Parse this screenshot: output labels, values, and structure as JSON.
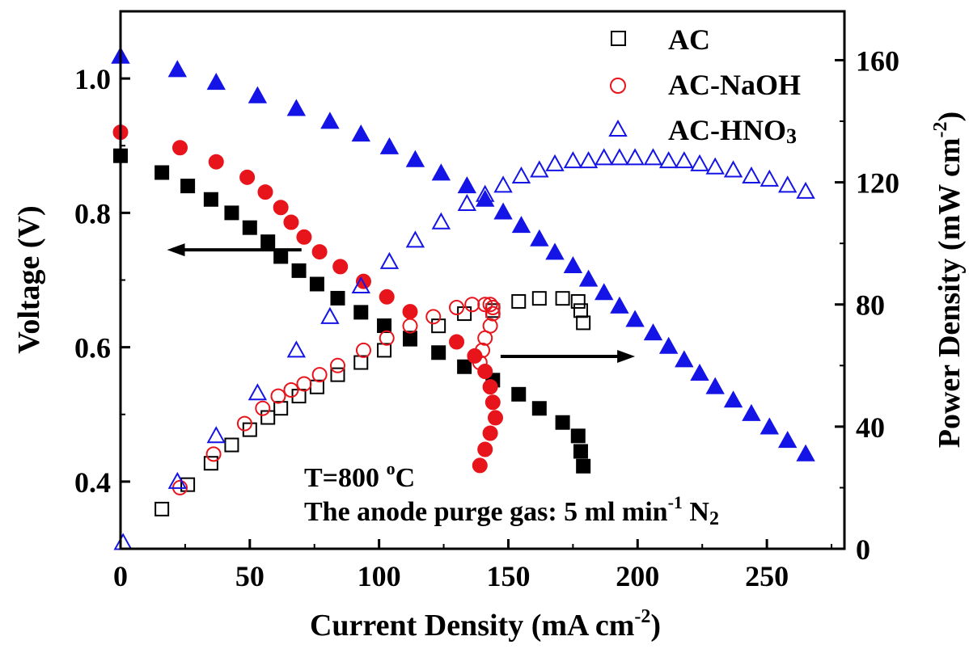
{
  "chart_data": {
    "type": "scatter",
    "xlabel": "Current Density (mA cm",
    "xlabel_sup": "-2",
    "xlabel_end": ")",
    "ylabel_left": "Voltage (V)",
    "ylabel_right": "Power Density (mW cm",
    "ylabel_right_sup": "-2",
    "ylabel_right_end": ")",
    "xlim": [
      0,
      280
    ],
    "ylim_left": [
      0.3,
      1.1
    ],
    "ylim_right": [
      0,
      176
    ],
    "x_ticks": [
      "0",
      "50",
      "100",
      "150",
      "200",
      "250"
    ],
    "x_tick_values": [
      0,
      50,
      100,
      150,
      200,
      250
    ],
    "y_left_ticks": [
      "0.4",
      "0.6",
      "0.8",
      "1.0"
    ],
    "y_left_tick_values": [
      0.4,
      0.6,
      0.8,
      1.0
    ],
    "y_right_ticks": [
      "0",
      "40",
      "80",
      "120",
      "160"
    ],
    "y_right_tick_values": [
      0,
      40,
      80,
      120,
      160
    ],
    "grid": false,
    "legend_position": "top-right",
    "legend": [
      {
        "label": "AC",
        "marker": "square-open",
        "color": "#000000"
      },
      {
        "label": "AC-NaOH",
        "marker": "circle-open",
        "color": "#e8141b"
      },
      {
        "label": "AC-HNO",
        "sub": "3",
        "marker": "triangle-open",
        "color": "#1414e6"
      }
    ],
    "annotations": {
      "temp_main": "T=800 ",
      "temp_sup": "o",
      "temp_end": "C",
      "gas_main": "The anode purge gas: 5 ml min",
      "gas_sup": "-1",
      "gas_mid": " N",
      "gas_sub": "2"
    },
    "series": [
      {
        "name": "AC",
        "kind": "voltage",
        "axis": "left",
        "marker": "square",
        "filled": true,
        "color": "#000000",
        "x": [
          0,
          16,
          26,
          35,
          43,
          50,
          57,
          62,
          69,
          76,
          84,
          93,
          102,
          112,
          123,
          133,
          144,
          154,
          162,
          171,
          177,
          178,
          179
        ],
        "y": [
          0.885,
          0.86,
          0.84,
          0.82,
          0.8,
          0.778,
          0.757,
          0.735,
          0.714,
          0.694,
          0.673,
          0.652,
          0.632,
          0.612,
          0.592,
          0.571,
          0.551,
          0.53,
          0.509,
          0.488,
          0.468,
          0.445,
          0.423
        ]
      },
      {
        "name": "AC",
        "kind": "power",
        "axis": "right",
        "marker": "square",
        "filled": false,
        "color": "#000000",
        "x": [
          16,
          26,
          35,
          43,
          50,
          57,
          62,
          69,
          76,
          84,
          93,
          102,
          112,
          123,
          133,
          144,
          154,
          162,
          171,
          177,
          178,
          179
        ],
        "y": [
          13,
          21,
          28,
          34,
          39,
          43,
          46,
          50,
          53,
          57,
          61,
          65,
          69,
          73,
          77,
          78,
          81,
          82,
          82,
          81,
          78,
          74
        ]
      },
      {
        "name": "AC-NaOH",
        "kind": "voltage",
        "axis": "left",
        "marker": "circle",
        "filled": true,
        "color": "#e8141b",
        "x": [
          0,
          23,
          37,
          49,
          56,
          62,
          66,
          71,
          77,
          85,
          94,
          103,
          112,
          130,
          137,
          141,
          143,
          144,
          145,
          143,
          141,
          139
        ],
        "y": [
          0.92,
          0.897,
          0.876,
          0.853,
          0.831,
          0.808,
          0.786,
          0.764,
          0.742,
          0.72,
          0.698,
          0.675,
          0.653,
          0.608,
          0.587,
          0.564,
          0.541,
          0.518,
          0.495,
          0.472,
          0.448,
          0.424
        ]
      },
      {
        "name": "AC-NaOH",
        "kind": "power",
        "axis": "right",
        "marker": "circle",
        "filled": false,
        "color": "#e8141b",
        "x": [
          23,
          36,
          48,
          55,
          61,
          66,
          71,
          77,
          84,
          94,
          103,
          112,
          121,
          130,
          136,
          141,
          143,
          144,
          144,
          143,
          141,
          140,
          139
        ],
        "y": [
          20,
          31,
          41,
          46,
          50,
          52,
          54,
          57,
          60,
          65,
          69,
          73,
          76,
          79,
          80,
          80,
          80,
          79,
          77,
          73,
          69,
          65,
          61
        ]
      },
      {
        "name": "AC-HNO3",
        "kind": "voltage",
        "axis": "left",
        "marker": "triangle",
        "filled": true,
        "color": "#1414e6",
        "x": [
          0,
          22,
          37,
          53,
          68,
          81,
          93,
          104,
          114,
          124,
          134,
          141,
          148,
          155,
          162,
          168,
          175,
          181,
          187,
          193,
          199,
          206,
          212,
          218,
          224,
          230,
          237,
          244,
          251,
          258,
          265
        ],
        "y": [
          1.033,
          1.013,
          0.994,
          0.974,
          0.955,
          0.936,
          0.917,
          0.898,
          0.879,
          0.859,
          0.84,
          0.82,
          0.801,
          0.781,
          0.761,
          0.741,
          0.721,
          0.701,
          0.681,
          0.661,
          0.641,
          0.621,
          0.601,
          0.581,
          0.561,
          0.541,
          0.521,
          0.501,
          0.481,
          0.461,
          0.441
        ]
      },
      {
        "name": "AC-HNO3",
        "kind": "power",
        "axis": "right",
        "marker": "triangle",
        "filled": false,
        "color": "#1414e6",
        "x": [
          1,
          22,
          37,
          53,
          68,
          81,
          93,
          104,
          114,
          124,
          134,
          141,
          148,
          155,
          162,
          168,
          175,
          181,
          187,
          193,
          199,
          206,
          212,
          218,
          224,
          230,
          237,
          244,
          251,
          258,
          265
        ],
        "y": [
          2,
          22,
          37,
          51,
          65,
          76,
          86,
          94,
          101,
          107,
          113,
          116,
          119,
          122,
          124,
          126,
          127,
          127,
          128,
          128,
          128,
          128,
          127,
          127,
          126,
          125,
          124,
          122,
          121,
          119,
          117
        ]
      }
    ],
    "arrows": [
      {
        "direction": "left",
        "x_from": 70,
        "x_to": 18,
        "y_left": 0.745
      },
      {
        "direction": "right",
        "x_from": 147,
        "x_to": 199,
        "y_right": 63
      }
    ]
  }
}
